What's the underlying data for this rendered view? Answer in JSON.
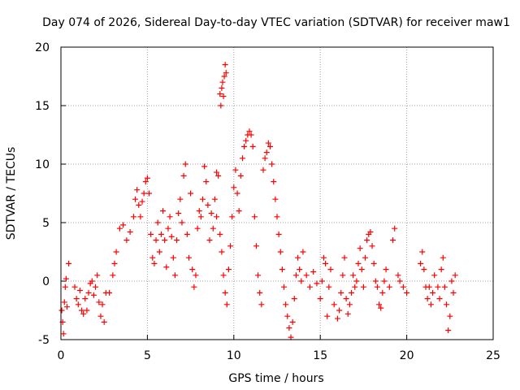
{
  "chart_data": {
    "type": "scatter",
    "title": "Day 074 of 2026, Sidereal Day-to-day VTEC variation (SDTVAR) for receiver maw1",
    "xlabel": "GPS time / hours",
    "ylabel": "SDTVAR / TECUs",
    "xlim": [
      0,
      25
    ],
    "ylim": [
      -5,
      20
    ],
    "xticks": [
      "0",
      "5",
      "10",
      "15",
      "20",
      "25"
    ],
    "yticks": [
      "-5",
      "0",
      "5",
      "10",
      "15",
      "20"
    ],
    "grid": true,
    "marker": "+",
    "color": "#ff0000",
    "series": [
      {
        "name": "SDTVAR",
        "points": [
          [
            0.05,
            -2.5
          ],
          [
            0.1,
            -3.5
          ],
          [
            0.15,
            -4.5
          ],
          [
            0.2,
            -1.8
          ],
          [
            0.25,
            -0.5
          ],
          [
            0.3,
            0.2
          ],
          [
            0.35,
            -2.2
          ],
          [
            0.45,
            1.5
          ],
          [
            0.8,
            -0.5
          ],
          [
            0.9,
            -1.5
          ],
          [
            1.0,
            -2.0
          ],
          [
            1.1,
            -0.8
          ],
          [
            1.2,
            -2.5
          ],
          [
            1.3,
            -2.8
          ],
          [
            1.4,
            -1.5
          ],
          [
            1.5,
            -2.5
          ],
          [
            1.6,
            -1.0
          ],
          [
            1.7,
            -0.2
          ],
          [
            1.8,
            0.0
          ],
          [
            1.9,
            -1.2
          ],
          [
            2.0,
            -0.5
          ],
          [
            2.1,
            0.5
          ],
          [
            2.2,
            -1.8
          ],
          [
            2.3,
            -3.0
          ],
          [
            2.4,
            -2.0
          ],
          [
            2.5,
            -3.5
          ],
          [
            2.6,
            -1.0
          ],
          [
            2.8,
            -1.0
          ],
          [
            3.0,
            0.5
          ],
          [
            3.1,
            1.5
          ],
          [
            3.2,
            2.5
          ],
          [
            3.4,
            4.5
          ],
          [
            3.6,
            4.8
          ],
          [
            3.8,
            3.5
          ],
          [
            4.0,
            4.2
          ],
          [
            4.2,
            5.5
          ],
          [
            4.3,
            7.0
          ],
          [
            4.4,
            7.8
          ],
          [
            4.5,
            6.5
          ],
          [
            4.6,
            5.5
          ],
          [
            4.7,
            6.8
          ],
          [
            4.8,
            7.5
          ],
          [
            4.9,
            8.5
          ],
          [
            5.0,
            8.8
          ],
          [
            5.1,
            7.5
          ],
          [
            5.2,
            4.0
          ],
          [
            5.3,
            2.0
          ],
          [
            5.4,
            1.5
          ],
          [
            5.5,
            3.5
          ],
          [
            5.6,
            5.0
          ],
          [
            5.7,
            2.5
          ],
          [
            5.8,
            4.0
          ],
          [
            5.9,
            6.0
          ],
          [
            6.0,
            3.5
          ],
          [
            6.1,
            1.2
          ],
          [
            6.2,
            4.5
          ],
          [
            6.3,
            5.5
          ],
          [
            6.4,
            3.8
          ],
          [
            6.5,
            2.0
          ],
          [
            6.6,
            0.5
          ],
          [
            6.7,
            3.5
          ],
          [
            6.8,
            5.8
          ],
          [
            6.9,
            7.0
          ],
          [
            7.0,
            5.0
          ],
          [
            7.1,
            9.0
          ],
          [
            7.2,
            10.0
          ],
          [
            7.3,
            4.0
          ],
          [
            7.4,
            2.0
          ],
          [
            7.5,
            7.5
          ],
          [
            7.6,
            1.0
          ],
          [
            7.7,
            -0.5
          ],
          [
            7.8,
            0.5
          ],
          [
            7.9,
            4.5
          ],
          [
            8.0,
            6.0
          ],
          [
            8.1,
            5.5
          ],
          [
            8.2,
            7.0
          ],
          [
            8.3,
            9.8
          ],
          [
            8.4,
            8.5
          ],
          [
            8.5,
            6.5
          ],
          [
            8.6,
            3.5
          ],
          [
            8.7,
            5.8
          ],
          [
            8.8,
            4.5
          ],
          [
            8.9,
            7.0
          ],
          [
            9.0,
            9.3
          ],
          [
            9.1,
            9.0
          ],
          [
            9.2,
            16.0
          ],
          [
            9.25,
            15.0
          ],
          [
            9.3,
            16.5
          ],
          [
            9.35,
            17.0
          ],
          [
            9.4,
            15.8
          ],
          [
            9.45,
            17.5
          ],
          [
            9.5,
            18.5
          ],
          [
            9.55,
            17.8
          ],
          [
            9.0,
            5.5
          ],
          [
            9.2,
            4.0
          ],
          [
            9.3,
            2.5
          ],
          [
            9.4,
            0.5
          ],
          [
            9.5,
            -1.0
          ],
          [
            9.6,
            -2.0
          ],
          [
            9.7,
            1.0
          ],
          [
            9.8,
            3.0
          ],
          [
            9.9,
            5.5
          ],
          [
            10.0,
            8.0
          ],
          [
            10.1,
            9.5
          ],
          [
            10.2,
            7.5
          ],
          [
            10.3,
            6.0
          ],
          [
            10.4,
            9.0
          ],
          [
            10.5,
            10.5
          ],
          [
            10.6,
            11.5
          ],
          [
            10.7,
            12.0
          ],
          [
            10.8,
            12.5
          ],
          [
            10.9,
            12.8
          ],
          [
            11.0,
            12.5
          ],
          [
            11.1,
            11.5
          ],
          [
            11.2,
            5.5
          ],
          [
            11.3,
            3.0
          ],
          [
            11.4,
            0.5
          ],
          [
            11.5,
            -1.0
          ],
          [
            11.6,
            -2.0
          ],
          [
            11.7,
            9.5
          ],
          [
            11.8,
            10.5
          ],
          [
            11.9,
            11.0
          ],
          [
            12.0,
            11.8
          ],
          [
            12.1,
            11.5
          ],
          [
            12.2,
            10.0
          ],
          [
            12.3,
            8.5
          ],
          [
            12.4,
            7.0
          ],
          [
            12.5,
            5.5
          ],
          [
            12.6,
            4.0
          ],
          [
            12.7,
            2.5
          ],
          [
            12.8,
            1.0
          ],
          [
            12.9,
            -0.5
          ],
          [
            13.0,
            -2.0
          ],
          [
            13.1,
            -3.0
          ],
          [
            13.2,
            -4.0
          ],
          [
            13.3,
            -4.8
          ],
          [
            13.4,
            -3.5
          ],
          [
            13.5,
            -1.5
          ],
          [
            13.6,
            0.5
          ],
          [
            13.7,
            2.0
          ],
          [
            13.8,
            1.0
          ],
          [
            13.9,
            0.0
          ],
          [
            14.0,
            2.5
          ],
          [
            14.2,
            0.5
          ],
          [
            14.4,
            -0.5
          ],
          [
            14.6,
            0.8
          ],
          [
            14.8,
            -0.2
          ],
          [
            15.0,
            -1.5
          ],
          [
            15.1,
            0.0
          ],
          [
            15.2,
            2.0
          ],
          [
            15.3,
            1.5
          ],
          [
            15.4,
            -3.0
          ],
          [
            15.5,
            -0.5
          ],
          [
            15.6,
            1.0
          ],
          [
            15.8,
            -2.0
          ],
          [
            16.0,
            -3.2
          ],
          [
            16.1,
            -2.5
          ],
          [
            16.2,
            -1.0
          ],
          [
            16.3,
            0.5
          ],
          [
            16.4,
            2.0
          ],
          [
            16.5,
            -1.5
          ],
          [
            16.6,
            -2.8
          ],
          [
            16.7,
            -2.0
          ],
          [
            16.8,
            -1.0
          ],
          [
            16.9,
            0.5
          ],
          [
            17.0,
            -0.5
          ],
          [
            17.1,
            0.0
          ],
          [
            17.2,
            1.5
          ],
          [
            17.3,
            2.8
          ],
          [
            17.4,
            1.0
          ],
          [
            17.5,
            -0.5
          ],
          [
            17.6,
            2.0
          ],
          [
            17.7,
            3.5
          ],
          [
            17.8,
            4.0
          ],
          [
            17.9,
            4.2
          ],
          [
            18.0,
            3.0
          ],
          [
            18.1,
            1.5
          ],
          [
            18.2,
            0.0
          ],
          [
            18.3,
            -0.5
          ],
          [
            18.4,
            -2.0
          ],
          [
            18.5,
            -2.3
          ],
          [
            18.6,
            -1.0
          ],
          [
            18.7,
            0.0
          ],
          [
            18.8,
            1.0
          ],
          [
            19.0,
            -0.5
          ],
          [
            19.2,
            3.5
          ],
          [
            19.3,
            4.5
          ],
          [
            19.5,
            0.5
          ],
          [
            19.6,
            0.0
          ],
          [
            19.8,
            -0.5
          ],
          [
            20.0,
            -1.0
          ],
          [
            20.8,
            1.5
          ],
          [
            20.9,
            2.5
          ],
          [
            21.0,
            1.0
          ],
          [
            21.1,
            -0.5
          ],
          [
            21.2,
            -1.5
          ],
          [
            21.3,
            -0.5
          ],
          [
            21.4,
            -2.0
          ],
          [
            21.5,
            -1.0
          ],
          [
            21.6,
            0.5
          ],
          [
            21.8,
            -0.5
          ],
          [
            21.9,
            -1.5
          ],
          [
            22.0,
            1.0
          ],
          [
            22.1,
            2.0
          ],
          [
            22.2,
            -0.5
          ],
          [
            22.3,
            -2.0
          ],
          [
            22.4,
            -4.2
          ],
          [
            22.5,
            -3.0
          ],
          [
            22.6,
            0.0
          ],
          [
            22.7,
            -1.0
          ],
          [
            22.8,
            0.5
          ]
        ]
      }
    ]
  }
}
